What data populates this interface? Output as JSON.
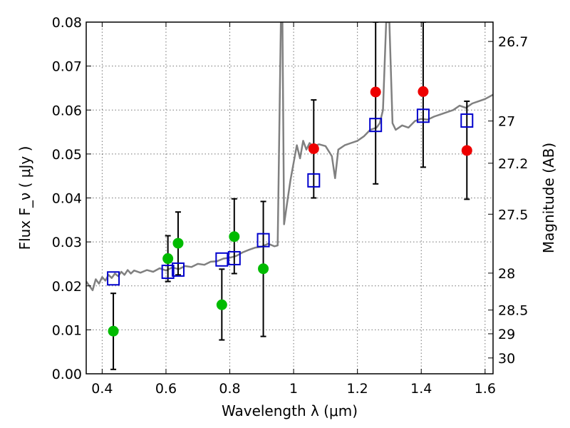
{
  "chart_data": {
    "type": "scatter",
    "xlabel": "Wavelength  λ (μm)",
    "ylabel_left": "Flux  F_ν  ( μJy )",
    "ylabel_right": "Magnitude (AB)",
    "xlim": [
      0.35,
      1.625
    ],
    "ylim": [
      0.0,
      0.08
    ],
    "grid": true,
    "x_ticks": [
      0.4,
      0.6,
      0.8,
      1.0,
      1.2,
      1.4,
      1.6
    ],
    "x_tick_labels": [
      "0.4",
      "0.6",
      "0.8",
      "1",
      "1.2",
      "1.4",
      "1.6"
    ],
    "y_ticks": [
      0.0,
      0.01,
      0.02,
      0.03,
      0.04,
      0.05,
      0.06,
      0.07,
      0.08
    ],
    "y_tick_labels": [
      "0.00",
      "0.01",
      "0.02",
      "0.03",
      "0.04",
      "0.05",
      "0.06",
      "0.07",
      "0.08"
    ],
    "right_axis_ticks": [
      {
        "label": "26.7",
        "flux": 0.0756
      },
      {
        "label": "27",
        "flux": 0.0575
      },
      {
        "label": "27.2",
        "flux": 0.0479
      },
      {
        "label": "27.5",
        "flux": 0.0363
      },
      {
        "label": "28",
        "flux": 0.0229
      },
      {
        "label": "28.5",
        "flux": 0.0145
      },
      {
        "label": "29",
        "flux": 0.0091
      },
      {
        "label": "30",
        "flux": 0.0036
      }
    ],
    "series": [
      {
        "marker": "circle",
        "color": "#00bb00",
        "points": [
          {
            "x": 0.435,
            "y": 0.0097,
            "ylo": 0.001,
            "yhi": 0.0183
          },
          {
            "x": 0.606,
            "y": 0.0262,
            "ylo": 0.021,
            "yhi": 0.0314
          },
          {
            "x": 0.638,
            "y": 0.0297,
            "ylo": 0.0225,
            "yhi": 0.0368
          },
          {
            "x": 0.775,
            "y": 0.0157,
            "ylo": 0.0077,
            "yhi": 0.0238
          },
          {
            "x": 0.814,
            "y": 0.0312,
            "ylo": 0.0228,
            "yhi": 0.0398
          },
          {
            "x": 0.905,
            "y": 0.0239,
            "ylo": 0.0085,
            "yhi": 0.0392
          }
        ]
      },
      {
        "marker": "circle",
        "color": "#ee0000",
        "points": [
          {
            "x": 1.063,
            "y": 0.0512,
            "ylo": 0.04,
            "yhi": 0.0623
          },
          {
            "x": 1.257,
            "y": 0.0641,
            "ylo": 0.0432,
            "yhi": 0.08
          },
          {
            "x": 1.406,
            "y": 0.0642,
            "ylo": 0.047,
            "yhi": 0.08
          },
          {
            "x": 1.543,
            "y": 0.0508,
            "ylo": 0.0397,
            "yhi": 0.062
          }
        ]
      },
      {
        "marker": "open-square",
        "color": "#0000cc",
        "points": [
          {
            "x": 0.435,
            "y": 0.0217
          },
          {
            "x": 0.606,
            "y": 0.0232
          },
          {
            "x": 0.638,
            "y": 0.0237
          },
          {
            "x": 0.775,
            "y": 0.026
          },
          {
            "x": 0.814,
            "y": 0.0263
          },
          {
            "x": 0.905,
            "y": 0.0304
          },
          {
            "x": 1.063,
            "y": 0.044
          },
          {
            "x": 1.257,
            "y": 0.0566
          },
          {
            "x": 1.406,
            "y": 0.0587
          },
          {
            "x": 1.543,
            "y": 0.0576
          }
        ]
      },
      {
        "marker": "line",
        "color": "#808080",
        "points": [
          [
            0.35,
            0.021
          ],
          [
            0.36,
            0.02
          ],
          [
            0.37,
            0.019
          ],
          [
            0.38,
            0.0215
          ],
          [
            0.39,
            0.0205
          ],
          [
            0.4,
            0.022
          ],
          [
            0.41,
            0.0212
          ],
          [
            0.42,
            0.0225
          ],
          [
            0.43,
            0.0218
          ],
          [
            0.44,
            0.0228
          ],
          [
            0.45,
            0.0222
          ],
          [
            0.46,
            0.0232
          ],
          [
            0.47,
            0.0225
          ],
          [
            0.48,
            0.0236
          ],
          [
            0.49,
            0.0228
          ],
          [
            0.5,
            0.0235
          ],
          [
            0.52,
            0.023
          ],
          [
            0.54,
            0.0236
          ],
          [
            0.56,
            0.0232
          ],
          [
            0.58,
            0.024
          ],
          [
            0.6,
            0.0235
          ],
          [
            0.62,
            0.0242
          ],
          [
            0.64,
            0.0238
          ],
          [
            0.66,
            0.0245
          ],
          [
            0.68,
            0.0243
          ],
          [
            0.7,
            0.025
          ],
          [
            0.72,
            0.0248
          ],
          [
            0.74,
            0.0255
          ],
          [
            0.76,
            0.0256
          ],
          [
            0.78,
            0.0262
          ],
          [
            0.8,
            0.0264
          ],
          [
            0.82,
            0.0268
          ],
          [
            0.84,
            0.0276
          ],
          [
            0.86,
            0.0282
          ],
          [
            0.88,
            0.0287
          ],
          [
            0.9,
            0.0289
          ],
          [
            0.92,
            0.0296
          ],
          [
            0.94,
            0.029
          ],
          [
            0.95,
            0.0292
          ],
          [
            0.96,
            0.08
          ],
          [
            0.965,
            0.08
          ],
          [
            0.97,
            0.034
          ],
          [
            0.98,
            0.039
          ],
          [
            0.99,
            0.044
          ],
          [
            1.0,
            0.048
          ],
          [
            1.01,
            0.052
          ],
          [
            1.02,
            0.049
          ],
          [
            1.03,
            0.053
          ],
          [
            1.04,
            0.051
          ],
          [
            1.05,
            0.0525
          ],
          [
            1.06,
            0.0518
          ],
          [
            1.08,
            0.0522
          ],
          [
            1.1,
            0.0518
          ],
          [
            1.12,
            0.0495
          ],
          [
            1.13,
            0.0445
          ],
          [
            1.14,
            0.051
          ],
          [
            1.16,
            0.052
          ],
          [
            1.18,
            0.0525
          ],
          [
            1.2,
            0.053
          ],
          [
            1.22,
            0.054
          ],
          [
            1.24,
            0.0555
          ],
          [
            1.26,
            0.056
          ],
          [
            1.27,
            0.057
          ],
          [
            1.28,
            0.06
          ],
          [
            1.29,
            0.08
          ],
          [
            1.3,
            0.08
          ],
          [
            1.31,
            0.057
          ],
          [
            1.32,
            0.0555
          ],
          [
            1.34,
            0.0565
          ],
          [
            1.36,
            0.056
          ],
          [
            1.38,
            0.0575
          ],
          [
            1.4,
            0.058
          ],
          [
            1.42,
            0.0578
          ],
          [
            1.44,
            0.0585
          ],
          [
            1.46,
            0.059
          ],
          [
            1.48,
            0.0595
          ],
          [
            1.5,
            0.06
          ],
          [
            1.52,
            0.061
          ],
          [
            1.54,
            0.0605
          ],
          [
            1.56,
            0.0615
          ],
          [
            1.58,
            0.062
          ],
          [
            1.6,
            0.0625
          ],
          [
            1.625,
            0.0635
          ]
        ]
      }
    ]
  }
}
